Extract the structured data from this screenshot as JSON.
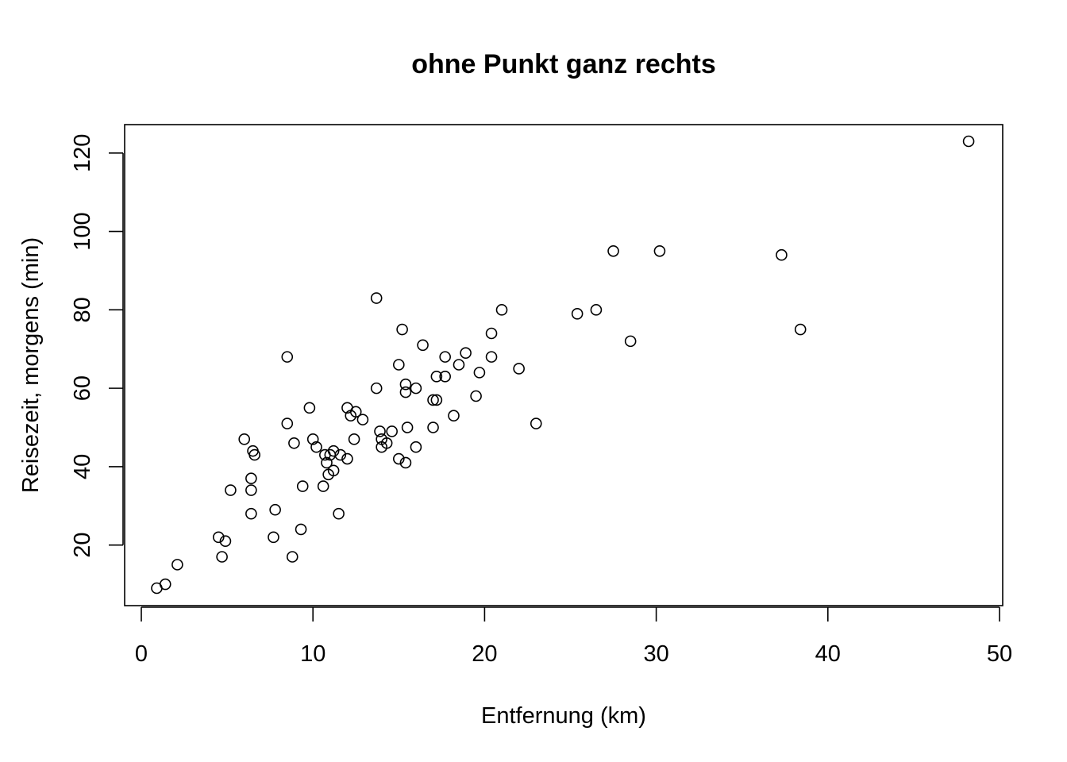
{
  "chart_data": {
    "type": "scatter",
    "title": "ohne Punkt ganz rechts",
    "xlabel": "Entfernung (km)",
    "ylabel": "Reisezeit, morgens (min)",
    "xlim": [
      0,
      50
    ],
    "ylim": [
      9,
      123
    ],
    "xticks": [
      0,
      10,
      20,
      30,
      40,
      50
    ],
    "yticks": [
      20,
      40,
      60,
      80,
      100,
      120
    ],
    "grid": false,
    "points": [
      [
        0.9,
        9
      ],
      [
        1.4,
        10
      ],
      [
        2.1,
        15
      ],
      [
        4.5,
        22
      ],
      [
        4.7,
        17
      ],
      [
        4.9,
        21
      ],
      [
        5.2,
        34
      ],
      [
        6.0,
        47
      ],
      [
        6.4,
        37
      ],
      [
        6.4,
        34
      ],
      [
        6.4,
        28
      ],
      [
        6.5,
        44
      ],
      [
        6.6,
        43
      ],
      [
        7.7,
        22
      ],
      [
        7.8,
        29
      ],
      [
        8.5,
        68
      ],
      [
        8.5,
        51
      ],
      [
        8.8,
        17
      ],
      [
        8.9,
        46
      ],
      [
        9.3,
        24
      ],
      [
        9.4,
        35
      ],
      [
        9.8,
        55
      ],
      [
        10.0,
        47
      ],
      [
        10.2,
        45
      ],
      [
        10.6,
        35
      ],
      [
        10.7,
        43
      ],
      [
        10.8,
        41
      ],
      [
        10.9,
        38
      ],
      [
        11.0,
        43
      ],
      [
        11.2,
        44
      ],
      [
        11.2,
        39
      ],
      [
        11.5,
        28
      ],
      [
        11.6,
        43
      ],
      [
        12.0,
        55
      ],
      [
        12.0,
        42
      ],
      [
        12.2,
        53
      ],
      [
        12.4,
        47
      ],
      [
        12.5,
        54
      ],
      [
        12.9,
        52
      ],
      [
        13.7,
        83
      ],
      [
        13.7,
        60
      ],
      [
        13.9,
        49
      ],
      [
        14.0,
        47
      ],
      [
        14.0,
        45
      ],
      [
        14.3,
        46
      ],
      [
        14.6,
        49
      ],
      [
        15.0,
        66
      ],
      [
        15.0,
        42
      ],
      [
        15.2,
        75
      ],
      [
        15.4,
        61
      ],
      [
        15.4,
        59
      ],
      [
        15.4,
        41
      ],
      [
        15.5,
        50
      ],
      [
        16.0,
        60
      ],
      [
        16.0,
        45
      ],
      [
        16.4,
        71
      ],
      [
        17.0,
        57
      ],
      [
        17.0,
        50
      ],
      [
        17.2,
        63
      ],
      [
        17.2,
        57
      ],
      [
        17.7,
        68
      ],
      [
        17.7,
        63
      ],
      [
        18.2,
        53
      ],
      [
        18.5,
        66
      ],
      [
        18.9,
        69
      ],
      [
        19.5,
        58
      ],
      [
        19.7,
        64
      ],
      [
        20.4,
        74
      ],
      [
        20.4,
        68
      ],
      [
        21.0,
        80
      ],
      [
        22.0,
        65
      ],
      [
        23.0,
        51
      ],
      [
        25.4,
        79
      ],
      [
        26.5,
        80
      ],
      [
        27.5,
        95
      ],
      [
        28.5,
        72
      ],
      [
        30.2,
        95
      ],
      [
        37.3,
        94
      ],
      [
        38.4,
        75
      ],
      [
        48.2,
        123
      ]
    ]
  }
}
